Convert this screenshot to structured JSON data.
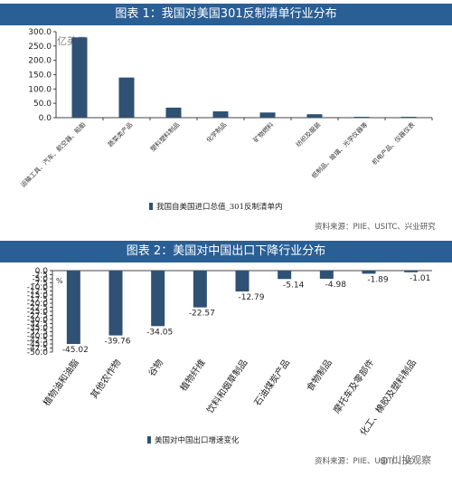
{
  "charts": [
    {
      "banner": "图表 1：我国对美国301反制清单行业分布",
      "source": "资料来源：PIIE、USITC、兴业研究",
      "unit": "亿美元"
    },
    {
      "banner": "图表 2：美国对中国出口下降行业分布",
      "source": "资料来源：PIIE、USITC、兴",
      "unit": "%",
      "watermark": "川投观察"
    }
  ],
  "chart_data": [
    {
      "type": "bar",
      "title": "图表 1：我国对美国301反制清单行业分布",
      "ylabel": "亿美元",
      "ylim": [
        0,
        300
      ],
      "yticks": [
        "300.0",
        "250.0",
        "200.0",
        "150.0",
        "100.0",
        "50.0",
        "0.0"
      ],
      "categories": [
        "运输工具、汽车、航空器、船舶",
        "蔬菜类产品",
        "塑料塑料制品",
        "化学制品",
        "矿物燃料",
        "纺织及服装",
        "纸制品、玻璃、光学仪器等",
        "机电产品、仪器仪表"
      ],
      "series": [
        {
          "name": "我国自美国进口总值_301反制清单内",
          "values": [
            280,
            140,
            35,
            22,
            18,
            12,
            3,
            3
          ]
        }
      ],
      "color": "#2e5174",
      "legend": "bottom-left"
    },
    {
      "type": "bar",
      "title": "图表 2：美国对中国出口下降行业分布",
      "ylabel": "%",
      "ylim": [
        -50,
        0
      ],
      "yticks": [
        "0.0",
        "-2.5",
        "-5.0",
        "-7.5",
        "-10.0",
        "-12.5",
        "-15.0",
        "-17.5",
        "-20.0",
        "-22.5",
        "-25.0",
        "-27.5",
        "-30.0",
        "-32.5",
        "-35.0",
        "-37.5",
        "-40.0",
        "-42.5",
        "-45.0",
        "-47.5",
        "-50.0"
      ],
      "categories": [
        "植物油和油脂",
        "其他农作物",
        "谷物",
        "植物纤维",
        "饮料和烟草制品",
        "石油煤炭产品",
        "食物制品",
        "摩托车及零部件",
        "化工、橡胶及塑料制品"
      ],
      "series": [
        {
          "name": "美国对中国出口增速变化",
          "values": [
            -45.02,
            -39.76,
            -34.05,
            -22.57,
            -12.79,
            -5.14,
            -4.98,
            -1.89,
            -1.01
          ]
        }
      ],
      "data_labels": [
        "-45.02",
        "-39.76",
        "-34.05",
        "-22.57",
        "-12.79",
        "-5.14",
        "-4.98",
        "-1.89",
        "-1.01"
      ],
      "color": "#2e5174",
      "legend": "bottom-left"
    }
  ]
}
